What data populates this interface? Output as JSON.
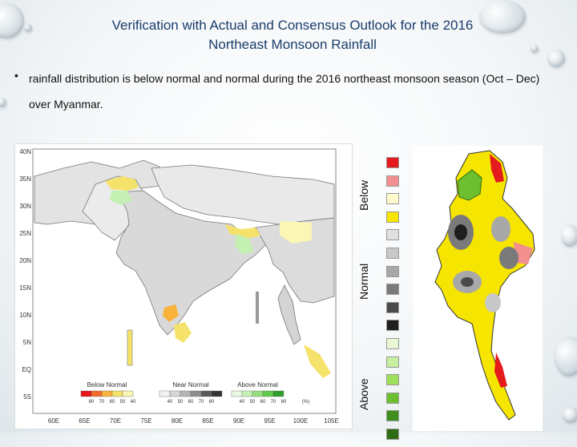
{
  "title": {
    "line1": "Verification with Actual and Consensus Outlook for the 2016",
    "line2": "Northeast Monsoon Rainfall"
  },
  "bullet": {
    "marker": "•",
    "text": "rainfall distribution is below normal and normal during the 2016 northeast monsoon season (Oct – Dec) over Myanmar."
  },
  "south_asia_map": {
    "lat_labels": [
      "40N",
      "35N",
      "30N",
      "25N",
      "20N",
      "15N",
      "10N",
      "5N",
      "EQ",
      "5S"
    ],
    "lon_labels": [
      "60E",
      "65E",
      "70E",
      "75E",
      "80E",
      "85E",
      "90E",
      "95E",
      "100E",
      "105E"
    ],
    "legend": {
      "below": {
        "title": "Below Normal",
        "ticks": [
          "80",
          "70",
          "60",
          "50",
          "40"
        ],
        "colors": [
          "#e8141c",
          "#f46a2a",
          "#f9b23a",
          "#f5e26b",
          "#fbf6b4"
        ]
      },
      "near": {
        "title": "Near Normal",
        "ticks": [
          "40",
          "50",
          "60",
          "70",
          "80"
        ],
        "colors": [
          "#f2f2f2",
          "#d6d6d6",
          "#b5b5b5",
          "#8e8e8e",
          "#5a5a5a",
          "#333333"
        ]
      },
      "above": {
        "title": "Above Normal",
        "ticks": [
          "40",
          "50",
          "60",
          "70",
          "80"
        ],
        "colors": [
          "#eaf9e3",
          "#c5f0b4",
          "#94e07f",
          "#5fc94a",
          "#2e9e2a"
        ]
      },
      "unit": "(%)"
    }
  },
  "category_labels": {
    "below": "Below",
    "normal": "Normal",
    "above": "Above"
  },
  "category_swatches": [
    "#e41a1c",
    "#f28f8f",
    "#fff9cc",
    "#f6e500",
    "#e0e0e0",
    "#c8c8c8",
    "#a8a8a8",
    "#7a7a7a",
    "#4a4a4a",
    "#1e1e1e",
    "#e8f7d4",
    "#c8efa0",
    "#9ee05c",
    "#6cbf2e",
    "#3f8f1c",
    "#2d6b14"
  ]
}
